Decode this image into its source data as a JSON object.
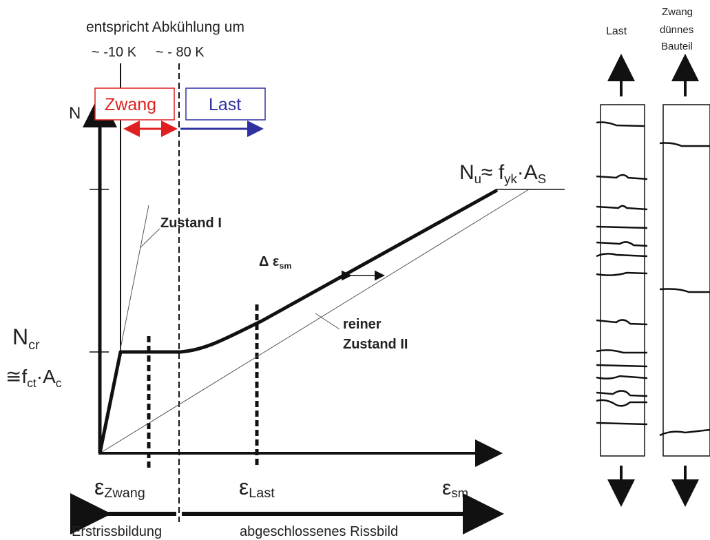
{
  "top_note": {
    "line1": "entspricht Abkühlung um",
    "temp_10": "~ -10 K",
    "temp_80": "~ - 80 K"
  },
  "axis": {
    "y_label": "N"
  },
  "boxes": {
    "zwang": {
      "label": "Zwang",
      "color": "#e02020"
    },
    "last": {
      "label": "Last",
      "color": "#3030a0"
    }
  },
  "curve_labels": {
    "zustand1": "Zustand I",
    "delta": "Δ ε",
    "delta_sub": "sm",
    "reiner": "reiner",
    "zustand2": "Zustand II"
  },
  "nu": {
    "n": "N",
    "n_sub": "u",
    "approx": "≈ f",
    "f_sub": "yk",
    "dot_a": "·A",
    "a_sub": "S"
  },
  "ncr": {
    "n": "N",
    "n_sub": "cr",
    "approx": "≅f",
    "f_sub": "ct",
    "dot_a": "·A",
    "a_sub": "c"
  },
  "x_labels": {
    "eps": "ε",
    "zwang_sub": "Zwang",
    "last_sub": "Last",
    "sm_sub": "sm"
  },
  "bottom": {
    "left": "Erstrissbildung",
    "right": "abgeschlossenes Rissbild"
  },
  "specimens": {
    "last_title": "Last",
    "zwang_title_1": "Zwang",
    "zwang_title_2": "dünnes",
    "zwang_title_3": "Bauteil"
  }
}
